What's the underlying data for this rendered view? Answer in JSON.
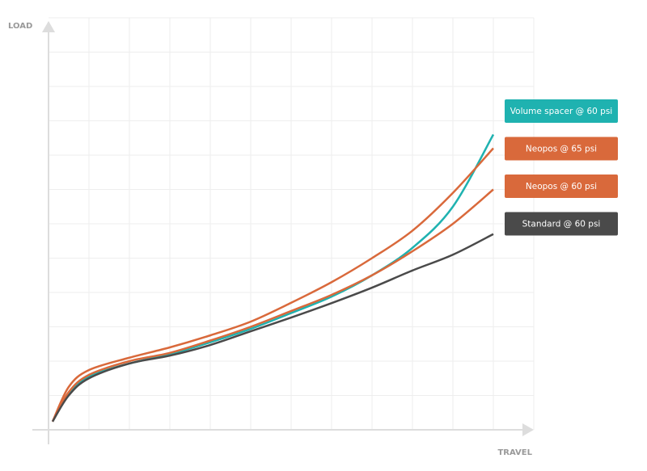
{
  "chart_data": {
    "type": "line",
    "y_label": "LOAD",
    "x_label": "TRAVEL",
    "x": [
      0.1,
      0.5,
      1,
      2,
      3,
      4,
      5,
      6,
      7,
      8,
      9,
      10,
      11
    ],
    "xlim": [
      0,
      12
    ],
    "ylim": [
      0,
      12
    ],
    "grid": true,
    "series": [
      {
        "name": "Volume spacer @ 60 psi",
        "color": "#1fb2b0",
        "values": [
          0.24,
          1.05,
          1.55,
          1.93,
          2.2,
          2.55,
          2.94,
          3.4,
          3.88,
          4.5,
          5.3,
          6.5,
          8.6
        ]
      },
      {
        "name": "Neopos @ 65 psi",
        "color": "#d9693b",
        "values": [
          0.24,
          1.25,
          1.74,
          2.1,
          2.4,
          2.75,
          3.15,
          3.7,
          4.3,
          5.0,
          5.8,
          6.9,
          8.2
        ]
      },
      {
        "name": "Neopos @ 60 psi",
        "color": "#d9693b",
        "values": [
          0.24,
          1.1,
          1.6,
          2.0,
          2.24,
          2.6,
          3.0,
          3.46,
          3.93,
          4.5,
          5.2,
          6.0,
          7.0
        ]
      },
      {
        "name": "Standard @ 60 psi",
        "color": "#4a4a4a",
        "values": [
          0.24,
          1.0,
          1.5,
          1.93,
          2.16,
          2.47,
          2.87,
          3.27,
          3.69,
          4.14,
          4.64,
          5.1,
          5.7
        ]
      }
    ]
  }
}
